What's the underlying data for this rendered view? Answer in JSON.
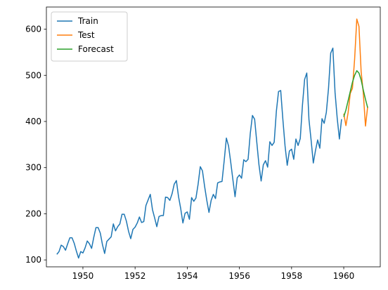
{
  "chart_data": {
    "type": "line",
    "title": "",
    "xlabel": "",
    "ylabel": "",
    "xlim": [
      1948.6,
      1961.4
    ],
    "ylim": [
      85,
      648
    ],
    "grid": false,
    "legend_position": "top-left",
    "x_ticks": [
      1950,
      1952,
      1954,
      1956,
      1958,
      1960
    ],
    "y_ticks": [
      100,
      200,
      300,
      400,
      500,
      600
    ],
    "series": [
      {
        "name": "Train",
        "color": "#1f77b4",
        "x_start": 1949.0,
        "x_step": 0.08333,
        "values": [
          112,
          118,
          132,
          129,
          121,
          135,
          148,
          148,
          136,
          119,
          104,
          118,
          115,
          126,
          141,
          135,
          125,
          149,
          170,
          170,
          158,
          133,
          114,
          140,
          145,
          150,
          178,
          163,
          172,
          178,
          199,
          199,
          184,
          162,
          146,
          166,
          171,
          180,
          193,
          181,
          183,
          218,
          230,
          242,
          209,
          191,
          172,
          194,
          196,
          196,
          236,
          235,
          229,
          243,
          264,
          272,
          237,
          211,
          180,
          201,
          204,
          188,
          235,
          227,
          234,
          264,
          302,
          293,
          259,
          229,
          203,
          229,
          242,
          233,
          267,
          269,
          270,
          315,
          364,
          347,
          312,
          274,
          237,
          278,
          284,
          277,
          317,
          313,
          318,
          374,
          413,
          405,
          355,
          306,
          271,
          306,
          315,
          301,
          356,
          348,
          355,
          422,
          465,
          467,
          404,
          347,
          305,
          336,
          340,
          318,
          362,
          348,
          363,
          435,
          491,
          505,
          404,
          359,
          310,
          337,
          360,
          342,
          406,
          396,
          420,
          472,
          548,
          559,
          463,
          407,
          362,
          405
        ]
      },
      {
        "name": "Test",
        "color": "#ff7f0e",
        "x_start": 1960.0,
        "x_step": 0.08333,
        "values": [
          417,
          391,
          419,
          461,
          472,
          535,
          622,
          606,
          508,
          461,
          390,
          432
        ]
      },
      {
        "name": "Forecast",
        "color": "#2ca02c",
        "x_start": 1960.0,
        "x_step": 0.08333,
        "values": [
          410,
          425,
          445,
          465,
          485,
          500,
          510,
          505,
          490,
          468,
          448,
          430
        ]
      }
    ]
  }
}
